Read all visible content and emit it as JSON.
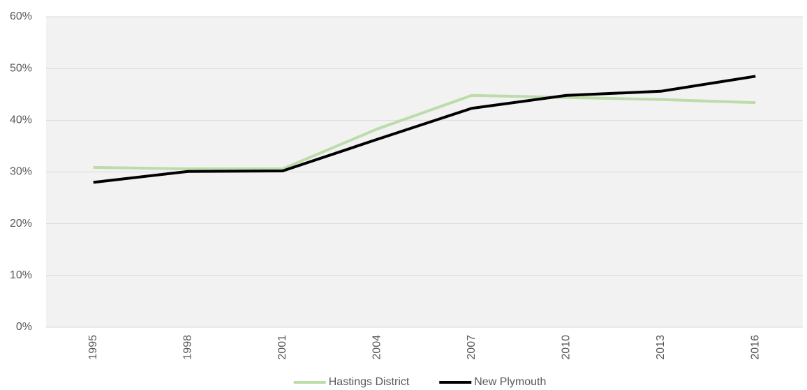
{
  "chart_data": {
    "type": "line",
    "categories": [
      "1995",
      "1998",
      "2001",
      "2004",
      "2007",
      "2010",
      "2013",
      "2016"
    ],
    "series": [
      {
        "name": "Hastings District",
        "color": "#bcdcaa",
        "values": [
          30.9,
          30.6,
          30.6,
          38.3,
          44.8,
          44.4,
          44.0,
          43.4
        ]
      },
      {
        "name": "New Plymouth",
        "color": "#000000",
        "values": [
          28.0,
          30.1,
          30.2,
          36.3,
          42.3,
          44.8,
          45.6,
          48.5
        ]
      }
    ],
    "ylim": [
      0,
      60
    ],
    "yticks": [
      {
        "value": 0,
        "label": "0%"
      },
      {
        "value": 10,
        "label": "10%"
      },
      {
        "value": 20,
        "label": "20%"
      },
      {
        "value": 30,
        "label": "30%"
      },
      {
        "value": 40,
        "label": "40%"
      },
      {
        "value": 50,
        "label": "50%"
      },
      {
        "value": 60,
        "label": "60%"
      }
    ],
    "grid": true,
    "legend": "bottom"
  }
}
